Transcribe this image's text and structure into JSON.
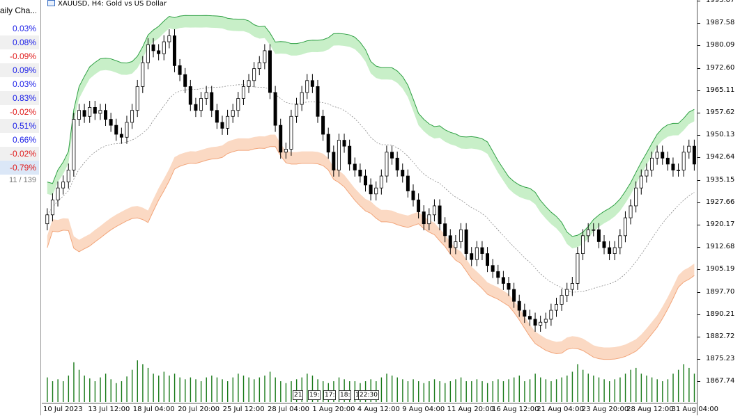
{
  "watchlist": {
    "header": "aily Cha...",
    "rows": [
      {
        "value": "0.03%",
        "dir": "pos"
      },
      {
        "value": "0.08%",
        "dir": "pos"
      },
      {
        "value": "-0.09%",
        "dir": "neg"
      },
      {
        "value": "0.09%",
        "dir": "pos"
      },
      {
        "value": "0.03%",
        "dir": "pos"
      },
      {
        "value": "0.83%",
        "dir": "pos"
      },
      {
        "value": "-0.02%",
        "dir": "neg"
      },
      {
        "value": "0.51%",
        "dir": "pos"
      },
      {
        "value": "0.66%",
        "dir": "pos"
      },
      {
        "value": "-0.02%",
        "dir": "neg"
      },
      {
        "value": "-0.79%",
        "dir": "neg"
      }
    ],
    "count": "11 / 139"
  },
  "chart": {
    "title": "XAUUSD, H4:  Gold vs US Dollar",
    "price_labels": [
      "1995.07",
      "1987.58",
      "1980.09",
      "1972.60",
      "1965.11",
      "1957.62",
      "1950.13",
      "1942.64",
      "1935.15",
      "1927.66",
      "1920.17",
      "1912.68",
      "1905.19",
      "1897.70",
      "1890.21",
      "1882.72",
      "1875.23",
      "1867.74"
    ],
    "time_labels": [
      "10 Jul 2023",
      "13 Jul 12:00",
      "18 Jul 04:00",
      "20 Jul 20:00",
      "25 Jul 12:00",
      "28 Jul 04:00",
      "1 Aug 20:00",
      "4 Aug 12:00",
      "9 Aug 04:00",
      "11 Aug 20:00",
      "16 Aug 12:00",
      "21 Aug 04:00",
      "23 Aug 20:00",
      "28 Aug 12:00",
      "31 Aug 04:00"
    ],
    "session_markers": [
      "21",
      "19:",
      "17:",
      "18:",
      "1",
      "22:30"
    ],
    "colors": {
      "bull": "#000000",
      "upper_band": "#c8efc8",
      "lower_band": "#fbd9c3",
      "upper_line": "#2ea043",
      "lower_line": "#f2a57a",
      "volume": "#1a7a1a",
      "mid_line": "#8a8a8a"
    }
  },
  "chart_data": {
    "type": "candlestick",
    "symbol": "XAUUSD",
    "timeframe": "H4",
    "ylim": [
      1862,
      1997
    ],
    "close": [
      1925,
      1930,
      1934,
      1936,
      1940,
      1957,
      1960,
      1958,
      1961,
      1959,
      1960,
      1957,
      1955,
      1952,
      1951,
      1956,
      1960,
      1968,
      1976,
      1982,
      1980,
      1979,
      1983,
      1985,
      1975,
      1972,
      1968,
      1962,
      1960,
      1964,
      1966,
      1960,
      1956,
      1954,
      1958,
      1960,
      1964,
      1968,
      1970,
      1974,
      1976,
      1980,
      1966,
      1955,
      1946,
      1947,
      1958,
      1962,
      1966,
      1970,
      1968,
      1958,
      1952,
      1946,
      1940,
      1950,
      1948,
      1942,
      1940,
      1938,
      1935,
      1932,
      1934,
      1938,
      1946,
      1944,
      1940,
      1938,
      1933,
      1930,
      1926,
      1922,
      1925,
      1928,
      1922,
      1918,
      1914,
      1916,
      1920,
      1912,
      1910,
      1914,
      1912,
      1908,
      1906,
      1904,
      1902,
      1900,
      1896,
      1893,
      1891,
      1890,
      1888,
      1889,
      1890,
      1893,
      1895,
      1898,
      1900,
      1902,
      1912,
      1918,
      1920,
      1920,
      1916,
      1914,
      1912,
      1914,
      1918,
      1924,
      1928,
      1934,
      1938,
      1940,
      1944,
      1946,
      1944,
      1942,
      1940,
      1940,
      1946,
      1948,
      1942
    ],
    "volume": [
      26,
      22,
      24,
      22,
      28,
      42,
      34,
      28,
      25,
      22,
      26,
      30,
      24,
      20,
      22,
      27,
      34,
      44,
      40,
      36,
      30,
      28,
      32,
      28,
      30,
      26,
      24,
      26,
      24,
      22,
      26,
      28,
      26,
      24,
      22,
      26,
      30,
      28,
      26,
      24,
      26,
      28,
      32,
      26,
      22,
      20,
      22,
      24,
      26,
      30,
      28,
      24,
      22,
      20,
      22,
      26,
      24,
      22,
      22,
      20,
      22,
      24,
      22,
      26,
      30,
      28,
      26,
      24,
      22,
      24,
      22,
      20,
      22,
      24,
      22,
      20,
      22,
      24,
      26,
      22,
      22,
      24,
      22,
      20,
      22,
      24,
      22,
      24,
      26,
      28,
      22,
      24,
      30,
      26,
      24,
      22,
      24,
      26,
      28,
      32,
      40,
      34,
      30,
      28,
      26,
      24,
      22,
      24,
      26,
      30,
      34,
      36,
      30,
      28,
      26,
      24,
      22,
      24,
      30,
      34,
      40,
      36,
      30
    ]
  }
}
